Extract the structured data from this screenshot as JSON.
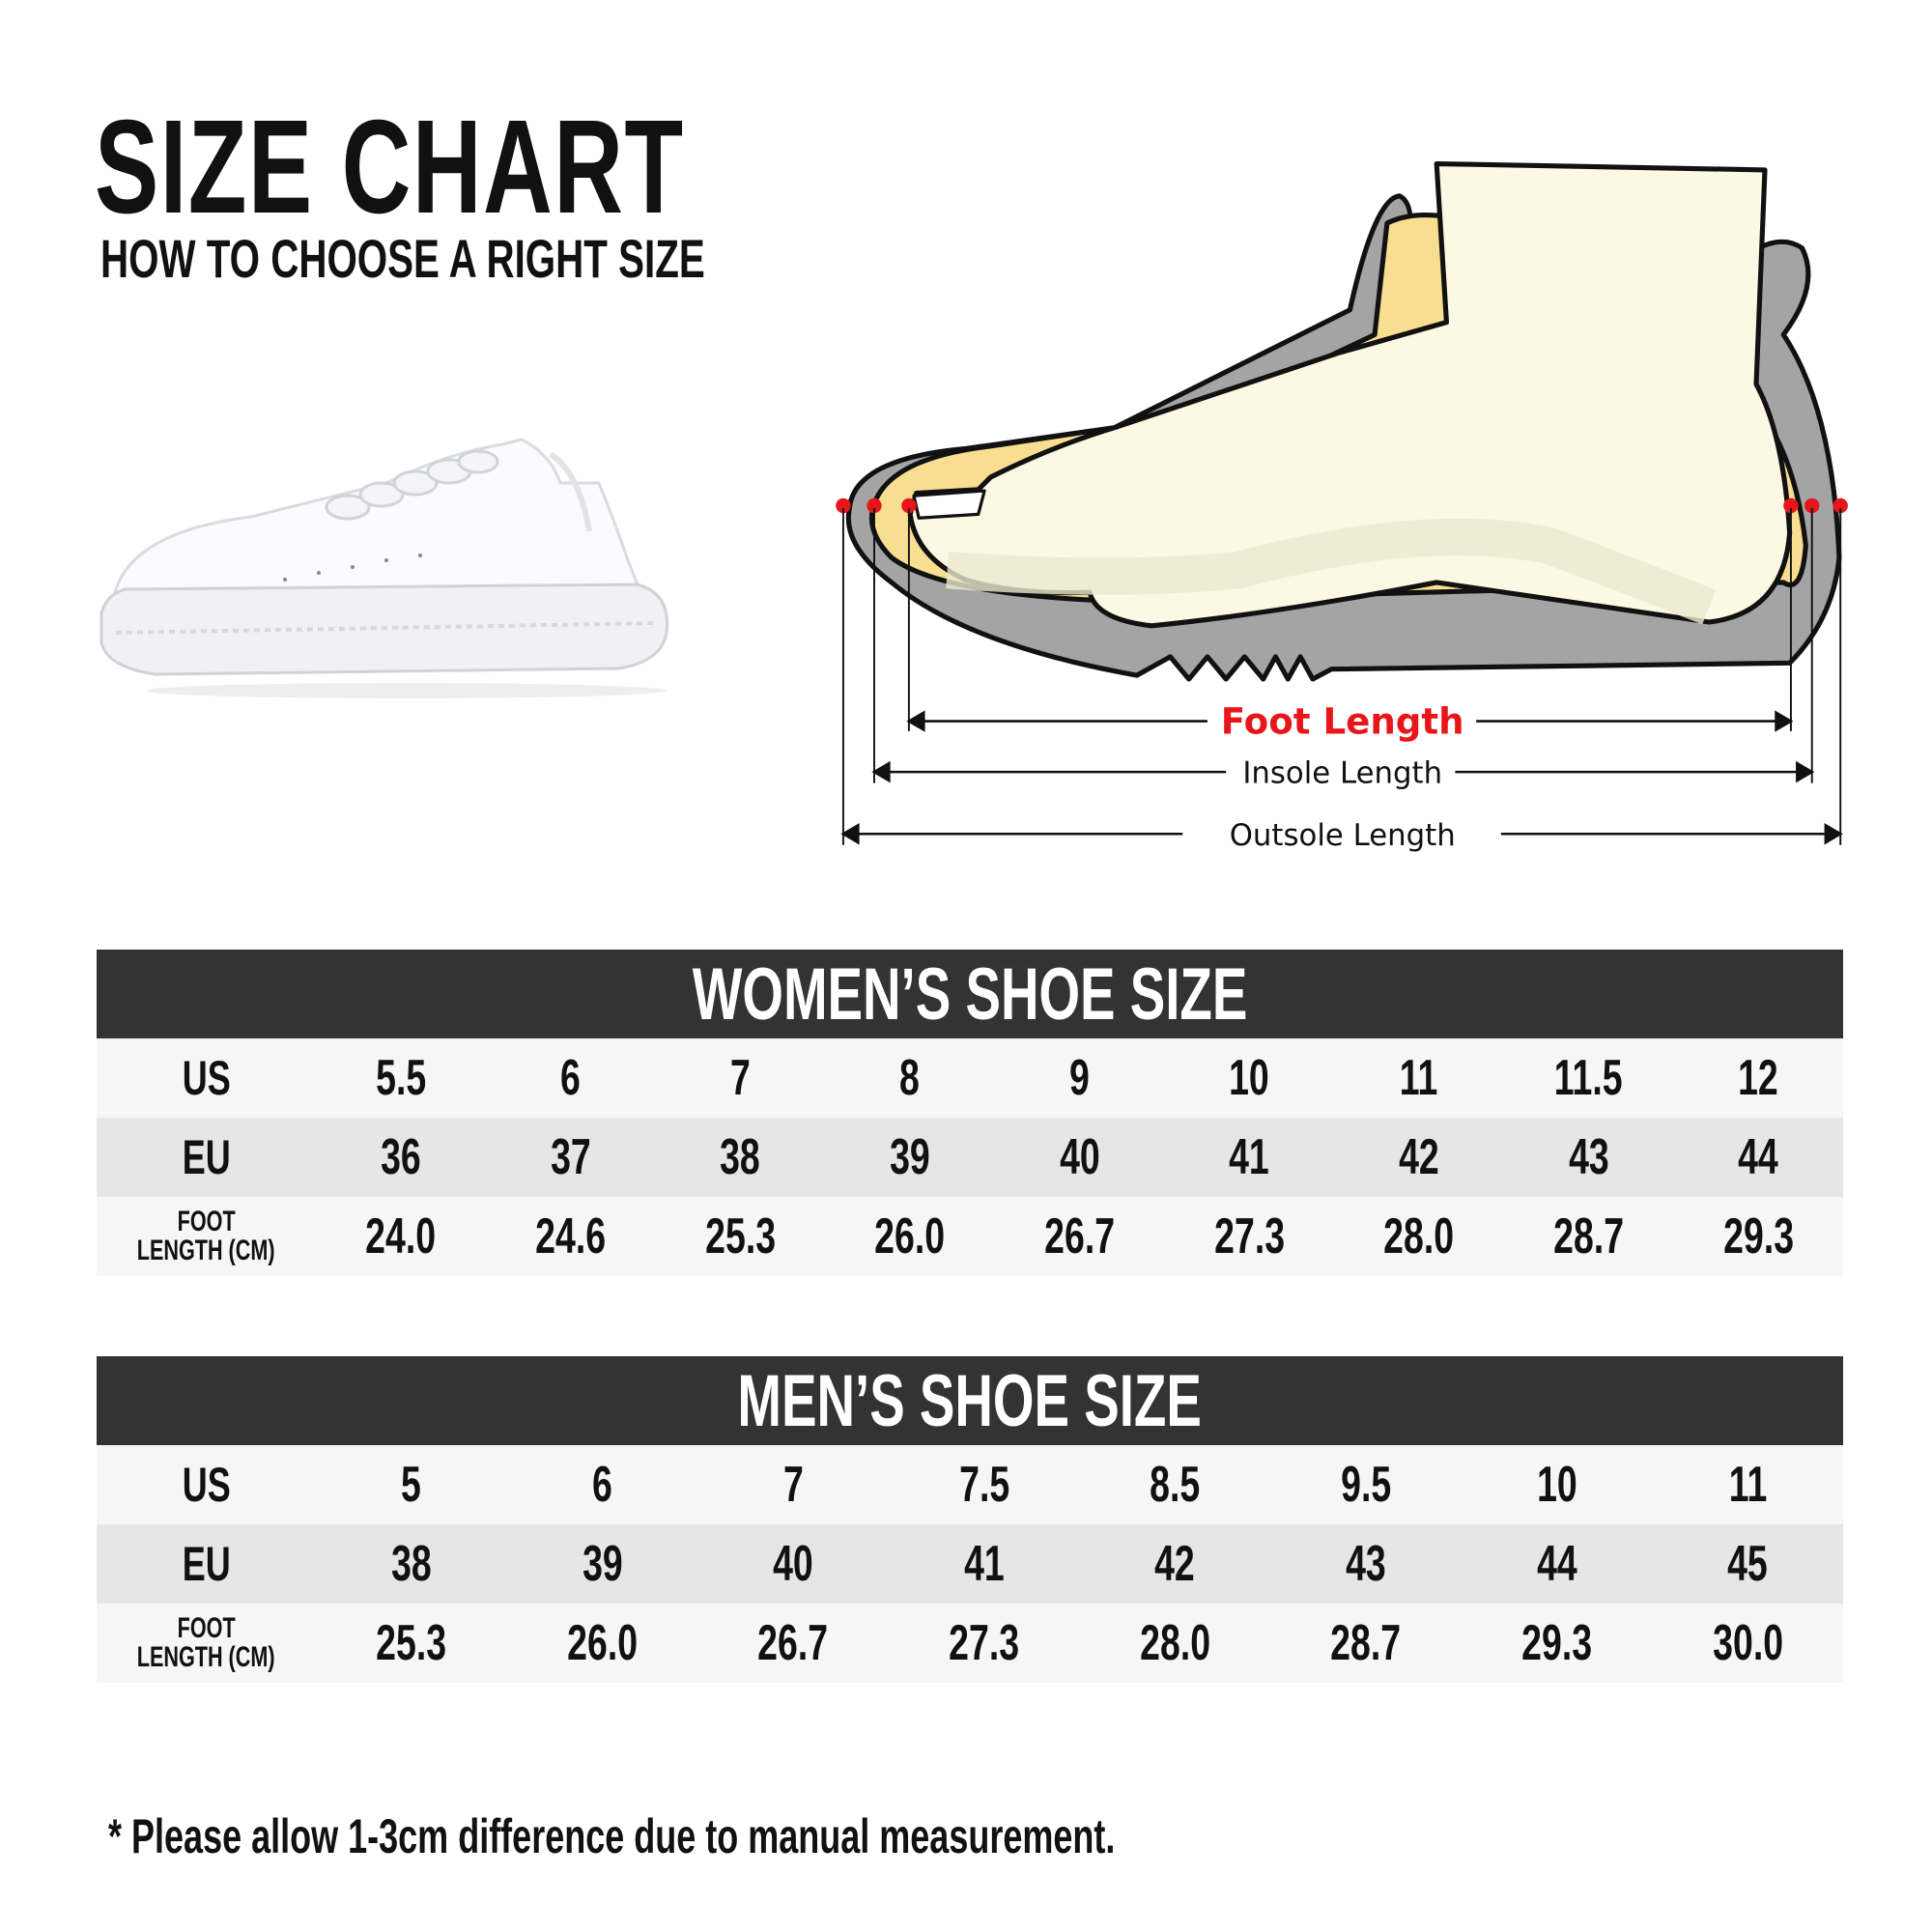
{
  "header": {
    "title": "SIZE CHART",
    "subtitle": "HOW TO CHOOSE A RIGHT SIZE"
  },
  "diagram": {
    "foot_length": "Foot Length",
    "insole_length": "Insole Length",
    "outsole_length": "Outsole Length",
    "accent_color": "#e8161b"
  },
  "women": {
    "title": "WOMEN’S SHOE SIZE",
    "labels": {
      "us": "US",
      "eu": "EU",
      "foot1": "FOOT",
      "foot2": "LENGTH (CM)"
    },
    "us": [
      "5.5",
      "6",
      "7",
      "8",
      "9",
      "10",
      "11",
      "11.5",
      "12"
    ],
    "eu": [
      "36",
      "37",
      "38",
      "39",
      "40",
      "41",
      "42",
      "43",
      "44"
    ],
    "cm": [
      "24.0",
      "24.6",
      "25.3",
      "26.0",
      "26.7",
      "27.3",
      "28.0",
      "28.7",
      "29.3"
    ]
  },
  "men": {
    "title": "MEN’S SHOE SIZE",
    "labels": {
      "us": "US",
      "eu": "EU",
      "foot1": "FOOT",
      "foot2": "LENGTH (CM)"
    },
    "us": [
      "5",
      "6",
      "7",
      "7.5",
      "8.5",
      "9.5",
      "10",
      "11"
    ],
    "eu": [
      "38",
      "39",
      "40",
      "41",
      "42",
      "43",
      "44",
      "45"
    ],
    "cm": [
      "25.3",
      "26.0",
      "26.7",
      "27.3",
      "28.0",
      "28.7",
      "29.3",
      "30.0"
    ]
  },
  "footnote": "* Please allow 1-3cm difference due to manual measurement."
}
